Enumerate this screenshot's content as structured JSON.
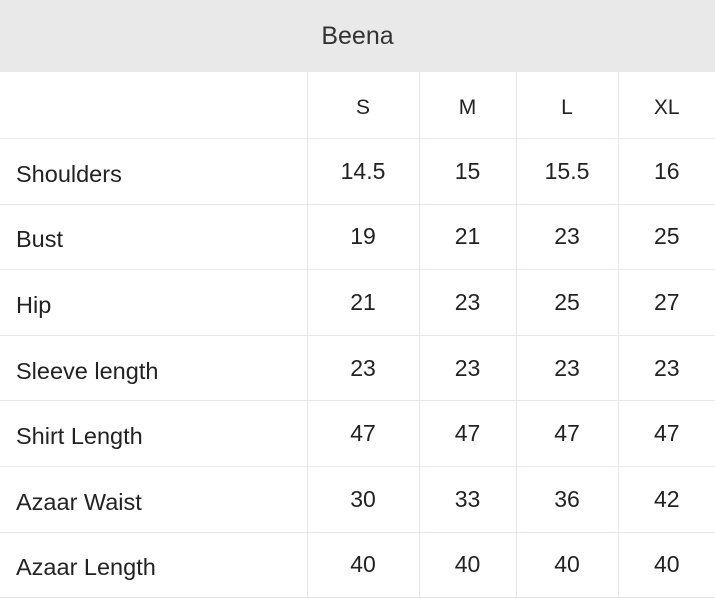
{
  "title": "Beena",
  "columns": [
    "",
    "S",
    "M",
    "L",
    "XL"
  ],
  "rows": [
    {
      "label": "Shoulders",
      "values": [
        "14.5",
        "15",
        "15.5",
        "16"
      ]
    },
    {
      "label": "Bust",
      "values": [
        "19",
        "21",
        "23",
        "25"
      ]
    },
    {
      "label": "Hip",
      "values": [
        "21",
        "23",
        "25",
        "27"
      ]
    },
    {
      "label": "Sleeve length",
      "values": [
        "23",
        "23",
        "23",
        "23"
      ]
    },
    {
      "label": "Shirt Length",
      "values": [
        "47",
        "47",
        "47",
        "47"
      ]
    },
    {
      "label": "Azaar Waist",
      "values": [
        "30",
        "33",
        "36",
        "42"
      ]
    },
    {
      "label": "Azaar Length",
      "values": [
        "40",
        "40",
        "40",
        "40"
      ]
    }
  ]
}
